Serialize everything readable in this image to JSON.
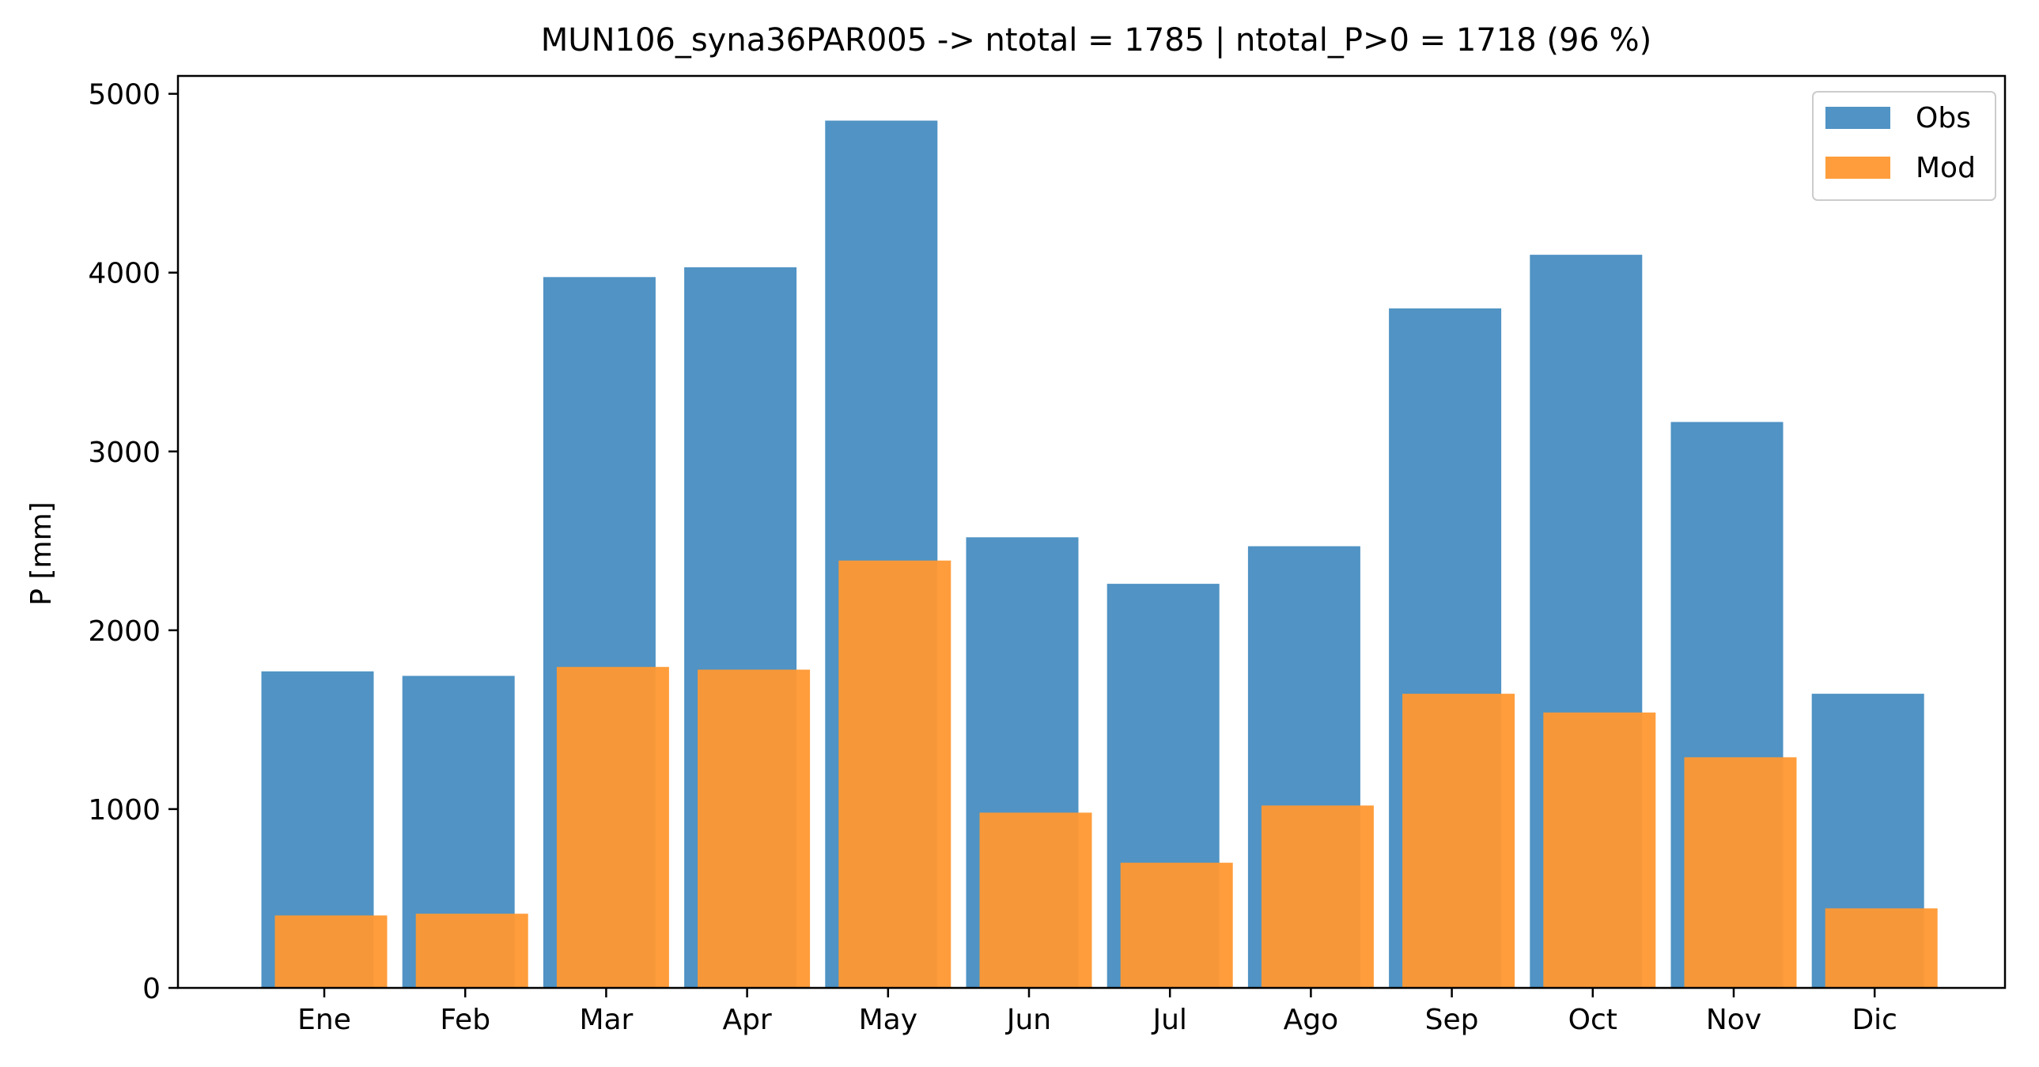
{
  "chart_data": {
    "type": "bar",
    "title": "MUN106_syna36PAR005 -> ntotal = 1785 | ntotal_P>0 = 1718 (96 %)",
    "xlabel": "",
    "ylabel": "P [mm]",
    "ylim": [
      0,
      5100
    ],
    "yticks": [
      0,
      1000,
      2000,
      3000,
      4000,
      5000
    ],
    "categories": [
      "Ene",
      "Feb",
      "Mar",
      "Apr",
      "May",
      "Jun",
      "Jul",
      "Ago",
      "Sep",
      "Oct",
      "Nov",
      "Dic"
    ],
    "series": [
      {
        "name": "Obs",
        "color": "#4c91c3",
        "values": [
          1770,
          1745,
          3975,
          4030,
          4850,
          2520,
          2260,
          2470,
          3800,
          4100,
          3165,
          1645
        ]
      },
      {
        "name": "Mod",
        "color": "#ff9832",
        "values": [
          405,
          415,
          1795,
          1780,
          2390,
          980,
          700,
          1020,
          1645,
          1540,
          1290,
          445
        ]
      }
    ],
    "legend": "top-right",
    "grid": false
  }
}
